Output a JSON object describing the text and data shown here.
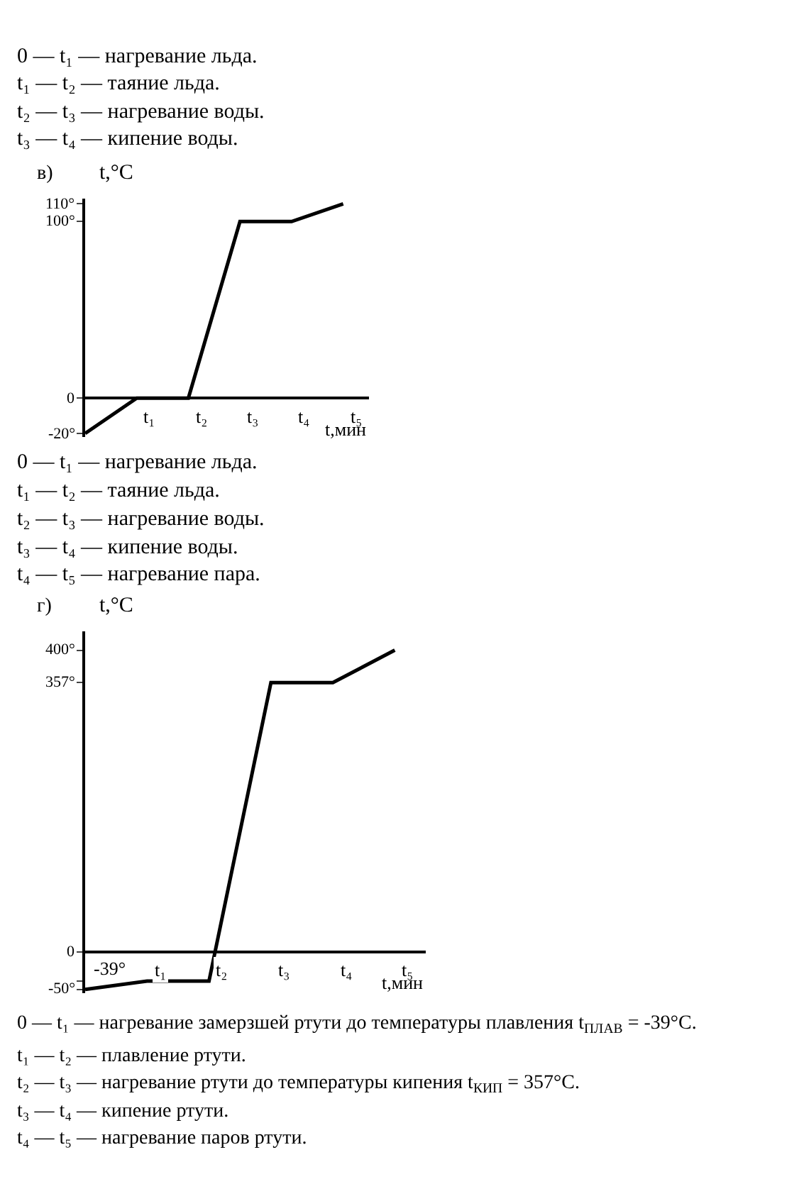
{
  "chart_data": [
    {
      "type": "line",
      "title": "в)",
      "xlabel": "t,мин",
      "ylabel": "t,°C",
      "categories": [
        null,
        "t₁",
        "t₂",
        "t₃",
        "t₄",
        "t₅"
      ],
      "series": [
        {
          "color": "#000000",
          "values": [
            -20,
            0,
            0,
            100,
            100,
            110
          ]
        }
      ],
      "ylim": [
        -22,
        113
      ],
      "yticks": [
        {
          "value": -20,
          "label": "-20°"
        },
        0,
        {
          "value": 100,
          "label": "100°"
        },
        {
          "value": 110,
          "label": "110°"
        }
      ],
      "marker": "none",
      "line_style": "solid",
      "annotations": [
        "0 — t₁ — нагревание льда.",
        "t₁ — t₂ — таяние льда.",
        "t₂ — t₃ — нагревание воды.",
        "t₃ — t₄ — кипение воды.",
        "0 — t₁ — нагревание льда.",
        "t₁ — t₂ — таяние льда.",
        "t₂ — t₃ — нагревание воды.",
        "t₃ — t₄ — кипение воды.",
        "t₄ — t₅ — нагревание пара."
      ]
    },
    {
      "type": "line",
      "title": "г)",
      "xlabel": "t,мин",
      "ylabel": "t,°C",
      "categories": [
        null,
        "t₁",
        "t₂",
        "t₃",
        "t₄",
        "t₅"
      ],
      "series": [
        {
          "color": "#000000",
          "values": [
            -50,
            -39,
            -39,
            357,
            357,
            400
          ]
        }
      ],
      "ylim": [
        -55,
        425
      ],
      "yticks": [
        {
          "value": -50,
          "label": "-50°"
        },
        {
          "value": -39,
          "label": null
        },
        0,
        {
          "value": 357,
          "label": "357°"
        },
        {
          "value": 400,
          "label": "400°"
        }
      ],
      "marker": "none",
      "line_style": "solid",
      "annotations": [
        "0 — t₁ — нагревание замерзшей ртути до температуры плавления t$_{ПЛАВ}$ = -39°C.",
        "t₁ — t₂ — плавление ртути.",
        "t₂ — t₃ — нагревание ртути до температуры кипения t$_{КИП}$ = 357°C.",
        "t₃ — t₄ — кипение ртути.",
        "t₄ — t₅ — нагревание паров ртути.",
        {
          "text": "-39°",
          "y": -39
        }
      ]
    }
  ]
}
